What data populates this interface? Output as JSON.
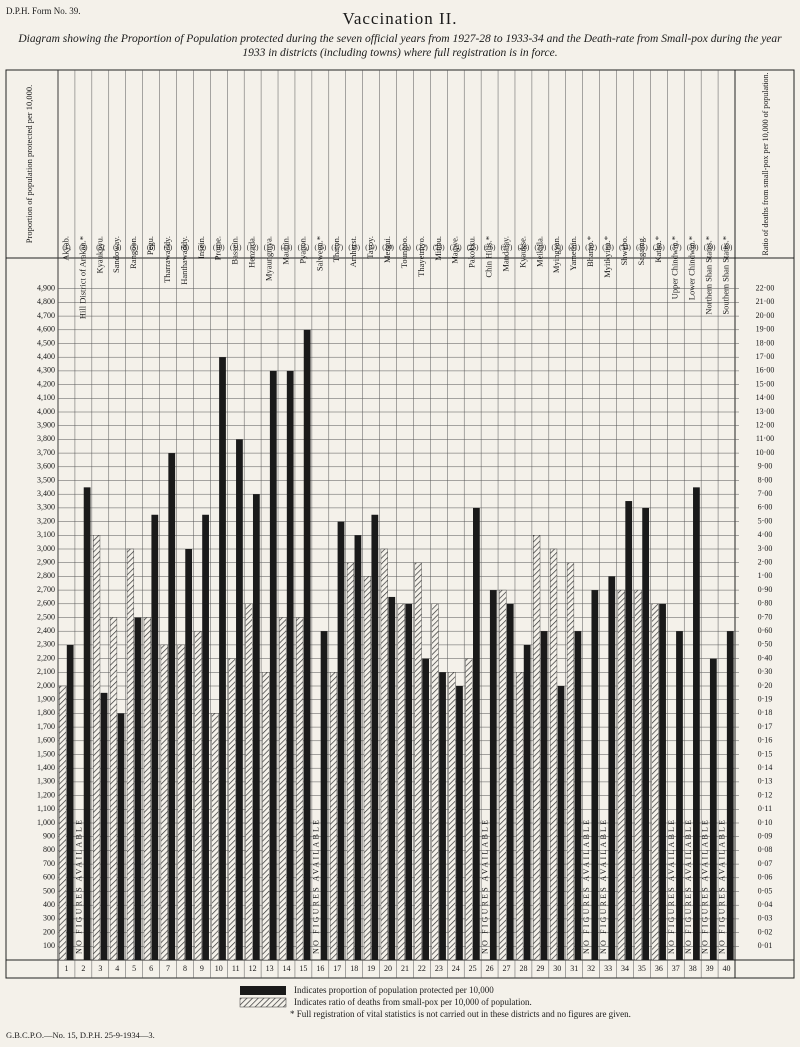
{
  "header": {
    "form": "D.P.H. Form No. 39.",
    "footer": "G.B.C.P.O.—No. 15, D.P.H. 25-9-1934—3.",
    "footnote": "* Full registration of vital statistics is not carried out in these districts and no figures are given."
  },
  "chart_data": {
    "type": "bar",
    "title": "Vaccination II.",
    "subtitle": "Diagram showing the Proportion of Population protected during the seven official years from 1927-28 to 1933-34 and the Death-rate from Small-pox during the year 1933 in districts (including towns) where full registration is in force.",
    "y_label": "Proportion of population protected per 10,000.",
    "y2_label": "Ratio of deaths from small-pox per 10,000 of population.",
    "categories": [
      "Akyab.",
      "Hill District of Arakan.*",
      "Kyaukpyu.",
      "Sandoway.",
      "Rangoon.",
      "Pegu.",
      "Tharrawaddy.",
      "Hanthawaddy.",
      "Insein.",
      "Prome.",
      "Bassein.",
      "Henzada.",
      "Myaungmya.",
      "Maubin.",
      "Pyapon.",
      "Salween.*",
      "Thaton.",
      "Amherst.",
      "Tavoy.",
      "Mergui.",
      "Toungoo.",
      "Thayetmyo.",
      "Minbu.",
      "Magwe.",
      "Pakokku.",
      "Chin Hills.*",
      "Mandalay.",
      "Kyaukse.",
      "Meiktila.",
      "Myingyan.",
      "Yamethin.",
      "Bhamo.*",
      "Myitkyina.*",
      "Shwebo.",
      "Sagaing.",
      "Katha.*",
      "Upper Chindwin.*",
      "Lower Chindwin.*",
      "Northern Shan States.*",
      "Southern Shan States.*"
    ],
    "header_numbers": [
      "(1)",
      "(2)",
      "(3)",
      "(4)",
      "(5)",
      "(6)",
      "(7)",
      "(8)",
      "(9)",
      "(10)",
      "(11)",
      "(12)",
      "(13)",
      "(14)",
      "(15)",
      "(16)",
      "(17)",
      "(18)",
      "(19)",
      "(20)",
      "(21)",
      "(22)",
      "(23)",
      "(24)",
      "(25)",
      "(26)",
      "(27)",
      "(28)",
      "(29)",
      "(30)",
      "(31)",
      "(32)",
      "(33)",
      "(34)",
      "(35)",
      "(36)",
      "(37)",
      "(38)",
      "(39)",
      "(40)"
    ],
    "column_numbers": [
      1,
      2,
      3,
      4,
      5,
      6,
      7,
      8,
      9,
      10,
      11,
      12,
      13,
      14,
      15,
      16,
      17,
      18,
      19,
      20,
      21,
      22,
      23,
      24,
      25,
      26,
      27,
      28,
      29,
      30,
      31,
      32,
      33,
      34,
      35,
      36,
      37,
      38,
      39,
      40
    ],
    "notes": [
      null,
      "NO FIGURES AVAILABLE",
      null,
      null,
      null,
      null,
      null,
      null,
      null,
      null,
      null,
      null,
      null,
      null,
      null,
      "NO FIGURES AVAILABLE",
      null,
      null,
      null,
      null,
      null,
      null,
      null,
      null,
      null,
      "NO FIGURES AVAILABLE",
      null,
      null,
      null,
      null,
      null,
      "NO FIGURES AVAILABLE",
      "NO FIGURES AVAILABLE",
      null,
      null,
      null,
      "NO FIGURES AVAILABLE",
      "NO FIGURES AVAILABLE",
      "NO FIGURES AVAILABLE",
      "NO FIGURES AVAILABLE"
    ],
    "series": [
      {
        "name": "Indicates proportion of population protected per 10,000",
        "color": "#1a1a1a",
        "values": [
          2300,
          3450,
          1950,
          1800,
          2500,
          3250,
          3700,
          3000,
          3250,
          4400,
          3800,
          3400,
          4300,
          4300,
          4600,
          2400,
          3200,
          3100,
          3250,
          2650,
          2600,
          2200,
          2100,
          2000,
          3300,
          2700,
          2600,
          2300,
          2400,
          2000,
          2400,
          2700,
          2800,
          3350,
          3300,
          2600,
          2400,
          3450,
          2200,
          2400
        ]
      },
      {
        "name": "Indicates ratio of deaths from small-pox per 10,000 of population.",
        "color": "#333333",
        "axis": "y2",
        "pattern": "hatch",
        "values": [
          0.2,
          null,
          4,
          0.7,
          3,
          0.7,
          0.5,
          0.5,
          0.6,
          0.18,
          0.4,
          0.8,
          0.3,
          0.7,
          0.7,
          null,
          0.3,
          2,
          1,
          3,
          0.8,
          2,
          0.8,
          0.3,
          0.4,
          null,
          0.9,
          0.3,
          4,
          3,
          2,
          null,
          null,
          0.9,
          0.9,
          0.8,
          null,
          null,
          null,
          null
        ]
      }
    ],
    "ylim": [
      0,
      5000
    ],
    "yticks": [
      100,
      200,
      300,
      400,
      500,
      600,
      700,
      800,
      900,
      {
        "value": 1000,
        "label": "1,000"
      },
      {
        "value": 1100,
        "label": "1,100"
      },
      {
        "value": 1200,
        "label": "1,200"
      },
      {
        "value": 1300,
        "label": "1,300"
      },
      {
        "value": 1400,
        "label": "1,400"
      },
      {
        "value": 1500,
        "label": "1,500"
      },
      {
        "value": 1600,
        "label": "1,600"
      },
      {
        "value": 1700,
        "label": "1,700"
      },
      {
        "value": 1800,
        "label": "1,800"
      },
      {
        "value": 1900,
        "label": "1,900"
      },
      {
        "value": 2000,
        "label": "2,000"
      },
      {
        "value": 2100,
        "label": "2,100"
      },
      {
        "value": 2200,
        "label": "2,200"
      },
      {
        "value": 2300,
        "label": "2,300"
      },
      {
        "value": 2400,
        "label": "2,400"
      },
      {
        "value": 2500,
        "label": "2,500"
      },
      {
        "value": 2600,
        "label": "2,600"
      },
      {
        "value": 2700,
        "label": "2,700"
      },
      {
        "value": 2800,
        "label": "2,800"
      },
      {
        "value": 2900,
        "label": "2,900"
      },
      {
        "value": 3000,
        "label": "3,000"
      },
      {
        "value": 3100,
        "label": "3,100"
      },
      {
        "value": 3200,
        "label": "3,200"
      },
      {
        "value": 3300,
        "label": "3,300"
      },
      {
        "value": 3400,
        "label": "3,400"
      },
      {
        "value": 3500,
        "label": "3,500"
      },
      {
        "value": 3600,
        "label": "3,600"
      },
      {
        "value": 3700,
        "label": "3,700"
      },
      {
        "value": 3800,
        "label": "3,800"
      },
      {
        "value": 3900,
        "label": "3,900"
      },
      {
        "value": 4000,
        "label": "4,000"
      },
      {
        "value": 4100,
        "label": "4,100"
      },
      {
        "value": 4200,
        "label": "4,200"
      },
      {
        "value": 4300,
        "label": "4,300"
      },
      {
        "value": 4400,
        "label": "4,400"
      },
      {
        "value": 4500,
        "label": "4,500"
      },
      {
        "value": 4600,
        "label": "4,600"
      },
      {
        "value": 4700,
        "label": "4,700"
      },
      {
        "value": 4800,
        "label": "4,800"
      },
      {
        "value": 4900,
        "label": "4,900"
      }
    ],
    "y2lim": [
      0,
      23
    ],
    "y2ticks": [
      {
        "value": 0.01,
        "label": "0·01"
      },
      {
        "value": 0.02,
        "label": "0·02"
      },
      {
        "value": 0.03,
        "label": "0·03"
      },
      {
        "value": 0.04,
        "label": "0·04"
      },
      {
        "value": 0.05,
        "label": "0·05"
      },
      {
        "value": 0.06,
        "label": "0·06"
      },
      {
        "value": 0.07,
        "label": "0·07"
      },
      {
        "value": 0.08,
        "label": "0·08"
      },
      {
        "value": 0.09,
        "label": "0·09"
      },
      {
        "value": 0.1,
        "label": "0·10"
      },
      {
        "value": 0.11,
        "label": "0·11"
      },
      {
        "value": 0.12,
        "label": "0·12"
      },
      {
        "value": 0.13,
        "label": "0·13"
      },
      {
        "value": 0.14,
        "label": "0·14"
      },
      {
        "value": 0.15,
        "label": "0·15"
      },
      {
        "value": 0.16,
        "label": "0·16"
      },
      {
        "value": 0.17,
        "label": "0·17"
      },
      {
        "value": 0.18,
        "label": "0·18"
      },
      {
        "value": 0.19,
        "label": "0·19"
      },
      {
        "value": 0.2,
        "label": "0·20"
      },
      {
        "value": 0.3,
        "label": "0·30"
      },
      {
        "value": 0.4,
        "label": "0·40"
      },
      {
        "value": 0.5,
        "label": "0·50"
      },
      {
        "value": 0.6,
        "label": "0·60"
      },
      {
        "value": 0.7,
        "label": "0·70"
      },
      {
        "value": 0.8,
        "label": "0·80"
      },
      {
        "value": 0.9,
        "label": "0·90"
      },
      {
        "value": 1,
        "label": "1·00"
      },
      {
        "value": 2,
        "label": "2·00"
      },
      {
        "value": 3,
        "label": "3·00"
      },
      {
        "value": 4,
        "label": "4·00"
      },
      {
        "value": 5,
        "label": "5·00"
      },
      {
        "value": 6,
        "label": "6·00"
      },
      {
        "value": 7,
        "label": "7·00"
      },
      {
        "value": 8,
        "label": "8·00"
      },
      {
        "value": 9,
        "label": "9·00"
      },
      {
        "value": 10,
        "label": "10·00"
      },
      {
        "value": 11,
        "label": "11·00"
      },
      {
        "value": 12,
        "label": "12·00"
      },
      {
        "value": 13,
        "label": "13·00"
      },
      {
        "value": 14,
        "label": "14·00"
      },
      {
        "value": 15,
        "label": "15·00"
      },
      {
        "value": 16,
        "label": "16·00"
      },
      {
        "value": 17,
        "label": "17·00"
      },
      {
        "value": 18,
        "label": "18·00"
      },
      {
        "value": 19,
        "label": "19·00"
      },
      {
        "value": 20,
        "label": "20·00"
      },
      {
        "value": 21,
        "label": "21·00"
      },
      {
        "value": 22,
        "label": "22·00"
      }
    ],
    "grid": true
  }
}
